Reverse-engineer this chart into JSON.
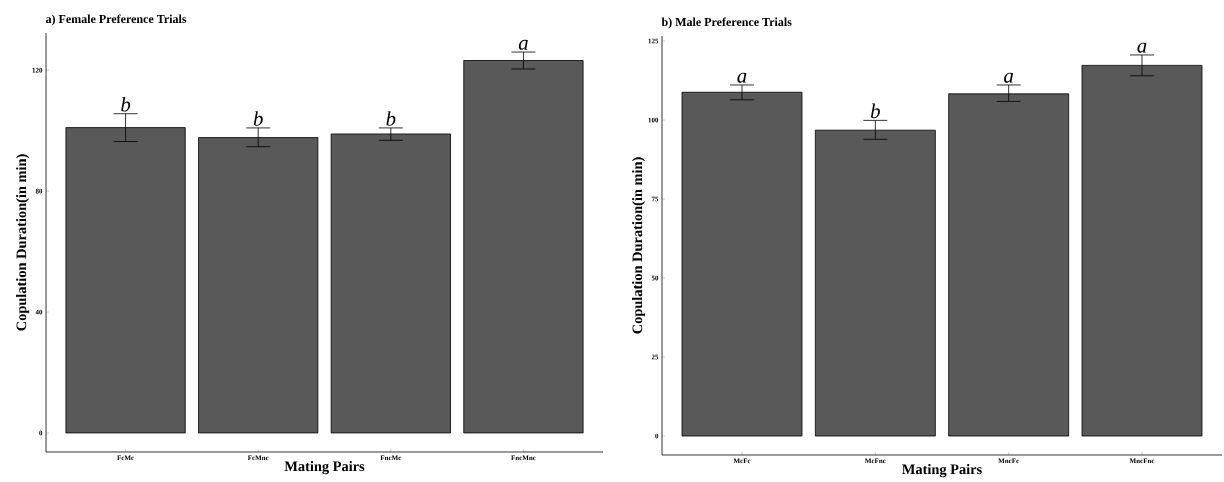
{
  "chart_data": [
    {
      "type": "bar",
      "title": "a) Female Preference Trials",
      "xlabel": "Mating Pairs",
      "ylabel": "Copulation Duration(in min)",
      "categories": [
        "FcMc",
        "FcMnc",
        "FncMc",
        "FncMnc"
      ],
      "values": [
        101.0,
        97.7,
        98.9,
        123.2
      ],
      "errors": [
        [
          96.4,
          105.6
        ],
        [
          94.7,
          100.9
        ],
        [
          96.8,
          100.9
        ],
        [
          120.4,
          126.0
        ]
      ],
      "color": "#595959",
      "ylim": [
        -6.3,
        132.3
      ],
      "yticks": [
        0,
        40,
        80,
        120
      ],
      "annotations": [
        {
          "text": "b",
          "x": "FcMc",
          "y": 105.6
        },
        {
          "text": "b",
          "x": "FcMnc",
          "y": 100.9
        },
        {
          "text": "b",
          "x": "FncMc",
          "y": 100.9
        },
        {
          "text": "a",
          "x": "FncMnc",
          "y": 126.0
        }
      ]
    },
    {
      "type": "bar",
      "title": "b) Male Preference Trials",
      "xlabel": "Mating Pairs",
      "ylabel": "Copulation Duration(in min)",
      "categories": [
        "McFc",
        "McFnc",
        "MncFc",
        "MncFnc"
      ],
      "values": [
        108.8,
        96.8,
        108.3,
        117.3
      ],
      "errors": [
        [
          106.4,
          111.1
        ],
        [
          93.9,
          99.9
        ],
        [
          105.9,
          111.1
        ],
        [
          114.0,
          120.6
        ]
      ],
      "color": "#595959",
      "ylim": [
        -6.0,
        126.6
      ],
      "yticks": [
        0,
        25,
        50,
        75,
        100,
        125
      ],
      "annotations": [
        {
          "text": "a",
          "x": "McFc",
          "y": 111.1
        },
        {
          "text": "b",
          "x": "McFnc",
          "y": 99.9
        },
        {
          "text": "a",
          "x": "MncFc",
          "y": 111.1
        },
        {
          "text": "a",
          "x": "MncFnc",
          "y": 120.6
        }
      ]
    }
  ]
}
